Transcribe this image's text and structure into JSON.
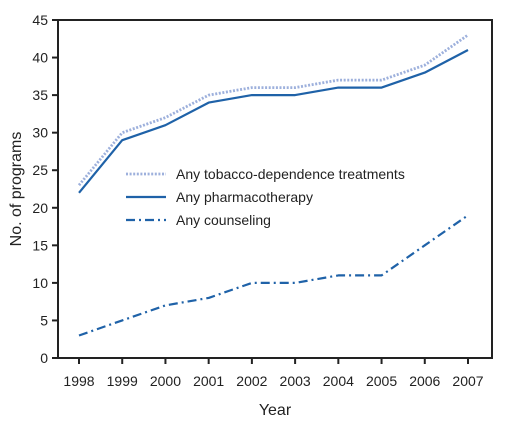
{
  "chart_data": {
    "type": "line",
    "title": "",
    "xlabel": "Year",
    "ylabel": "No. of programs",
    "x": [
      "1998",
      "1999",
      "2000",
      "2001",
      "2002",
      "2003",
      "2004",
      "2005",
      "2006",
      "2007"
    ],
    "ylim": [
      0,
      45
    ],
    "yticks": [
      0,
      5,
      10,
      15,
      20,
      25,
      30,
      35,
      40,
      45
    ],
    "grid": false,
    "legend_position": "center-left",
    "series": [
      {
        "name": "Any tobacco-dependence treatments",
        "values": [
          23,
          30,
          32,
          35,
          36,
          36,
          37,
          37,
          39,
          43
        ],
        "color": "#9db0dc",
        "style": "dotted"
      },
      {
        "name": "Any pharmacotherapy",
        "values": [
          22,
          29,
          31,
          34,
          35,
          35,
          36,
          36,
          38,
          41
        ],
        "color": "#1f62a8",
        "style": "solid"
      },
      {
        "name": "Any counseling",
        "values": [
          3,
          5,
          7,
          8,
          10,
          10,
          11,
          11,
          15,
          19
        ],
        "color": "#1f62a8",
        "style": "dashdot"
      }
    ]
  }
}
